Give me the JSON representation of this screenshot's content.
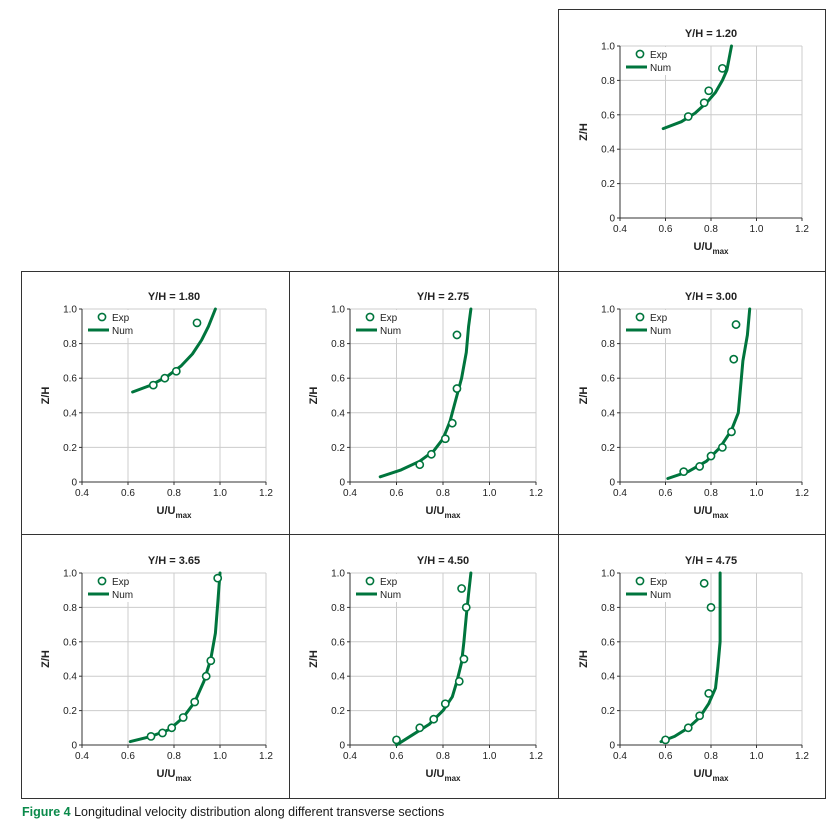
{
  "caption": {
    "label": "Figure 4",
    "text": "Longitudinal velocity distribution along different transverse sections"
  },
  "colors": {
    "series": "#00753d",
    "frame": "#333333",
    "grid": "#cccccc",
    "text": "#222222"
  },
  "chart_data": [
    {
      "type": "scatter",
      "title": "Y/H = 1.20",
      "xlabel": "U/U",
      "xlabel_sub": "max",
      "ylabel": "Z/H",
      "xlim": [
        0.4,
        1.2
      ],
      "ylim": [
        0,
        1.0
      ],
      "xticks": [
        0.4,
        0.6,
        0.8,
        1.0,
        1.2
      ],
      "xtick_labels": [
        "0.4",
        "0.6",
        "0.8",
        "1.0",
        "1.2"
      ],
      "yticks": [
        0,
        0.2,
        0.4,
        0.6,
        0.8,
        1.0
      ],
      "ytick_labels": [
        "0",
        "0.2",
        "0.4",
        "0.6",
        "0.8",
        "1.0"
      ],
      "grid": true,
      "legend": "top-left",
      "series": [
        {
          "name": "Exp",
          "kind": "markers",
          "x": [
            0.7,
            0.77,
            0.79,
            0.85
          ],
          "y": [
            0.59,
            0.67,
            0.74,
            0.87
          ]
        },
        {
          "name": "Num",
          "kind": "line",
          "x": [
            0.59,
            0.67,
            0.73,
            0.78,
            0.82,
            0.85,
            0.87,
            0.88,
            0.89
          ],
          "y": [
            0.52,
            0.56,
            0.61,
            0.67,
            0.73,
            0.8,
            0.86,
            0.93,
            1.0
          ]
        }
      ]
    },
    {
      "type": "scatter",
      "title": "Y/H = 1.80",
      "xlabel": "U/U",
      "xlabel_sub": "max",
      "ylabel": "Z/H",
      "xlim": [
        0.4,
        1.2
      ],
      "ylim": [
        0,
        1.0
      ],
      "xticks": [
        0.4,
        0.6,
        0.8,
        1.0,
        1.2
      ],
      "xtick_labels": [
        "0.4",
        "0.6",
        "0.8",
        "1.0",
        "1.2"
      ],
      "yticks": [
        0,
        0.2,
        0.4,
        0.6,
        0.8,
        1.0
      ],
      "ytick_labels": [
        "0",
        "0.2",
        "0.4",
        "0.6",
        "0.8",
        "1.0"
      ],
      "grid": true,
      "legend": "top-left",
      "series": [
        {
          "name": "Exp",
          "kind": "markers",
          "x": [
            0.71,
            0.76,
            0.81,
            0.9
          ],
          "y": [
            0.56,
            0.6,
            0.64,
            0.92
          ]
        },
        {
          "name": "Num",
          "kind": "line",
          "x": [
            0.62,
            0.7,
            0.77,
            0.83,
            0.88,
            0.92,
            0.95,
            0.98
          ],
          "y": [
            0.52,
            0.56,
            0.61,
            0.67,
            0.74,
            0.82,
            0.9,
            1.0
          ]
        }
      ]
    },
    {
      "type": "scatter",
      "title": "Y/H = 2.75",
      "xlabel": "U/U",
      "xlabel_sub": "max",
      "ylabel": "Z/H",
      "xlim": [
        0.4,
        1.2
      ],
      "ylim": [
        0,
        1.0
      ],
      "xticks": [
        0.4,
        0.6,
        0.8,
        1.0,
        1.2
      ],
      "xtick_labels": [
        "0.4",
        "0.6",
        "0.8",
        "1.0",
        "1.2"
      ],
      "yticks": [
        0,
        0.2,
        0.4,
        0.6,
        0.8,
        1.0
      ],
      "ytick_labels": [
        "0",
        "0.2",
        "0.4",
        "0.6",
        "0.8",
        "1.0"
      ],
      "grid": true,
      "legend": "top-left",
      "series": [
        {
          "name": "Exp",
          "kind": "markers",
          "x": [
            0.7,
            0.75,
            0.81,
            0.84,
            0.86,
            0.86
          ],
          "y": [
            0.1,
            0.16,
            0.25,
            0.34,
            0.54,
            0.85
          ]
        },
        {
          "name": "Num",
          "kind": "line",
          "x": [
            0.53,
            0.62,
            0.7,
            0.76,
            0.8,
            0.83,
            0.85,
            0.88,
            0.9,
            0.91,
            0.92
          ],
          "y": [
            0.03,
            0.07,
            0.12,
            0.18,
            0.25,
            0.35,
            0.45,
            0.6,
            0.75,
            0.9,
            1.0
          ]
        }
      ]
    },
    {
      "type": "scatter",
      "title": "Y/H = 3.00",
      "xlabel": "U/U",
      "xlabel_sub": "max",
      "ylabel": "Z/H",
      "xlim": [
        0.4,
        1.2
      ],
      "ylim": [
        0,
        1.0
      ],
      "xticks": [
        0.4,
        0.6,
        0.8,
        1.0,
        1.2
      ],
      "xtick_labels": [
        "0.4",
        "0.6",
        "0.8",
        "1.0",
        "1.2"
      ],
      "yticks": [
        0,
        0.2,
        0.4,
        0.6,
        0.8,
        1.0
      ],
      "ytick_labels": [
        "0",
        "0.2",
        "0.4",
        "0.6",
        "0.8",
        "1.0"
      ],
      "grid": true,
      "legend": "top-left",
      "series": [
        {
          "name": "Exp",
          "kind": "markers",
          "x": [
            0.68,
            0.75,
            0.8,
            0.85,
            0.89,
            0.9,
            0.91
          ],
          "y": [
            0.06,
            0.09,
            0.15,
            0.2,
            0.29,
            0.71,
            0.91
          ]
        },
        {
          "name": "Num",
          "kind": "line",
          "x": [
            0.61,
            0.7,
            0.78,
            0.84,
            0.89,
            0.92,
            0.93,
            0.94,
            0.96,
            0.97
          ],
          "y": [
            0.02,
            0.06,
            0.12,
            0.2,
            0.3,
            0.4,
            0.55,
            0.7,
            0.85,
            1.0
          ]
        }
      ]
    },
    {
      "type": "scatter",
      "title": "Y/H = 3.65",
      "xlabel": "U/U",
      "xlabel_sub": "max",
      "ylabel": "Z/H",
      "xlim": [
        0.4,
        1.2
      ],
      "ylim": [
        0,
        1.0
      ],
      "xticks": [
        0.4,
        0.6,
        0.8,
        1.0,
        1.2
      ],
      "xtick_labels": [
        "0.4",
        "0.6",
        "0.8",
        "1.0",
        "1.2"
      ],
      "yticks": [
        0,
        0.2,
        0.4,
        0.6,
        0.8,
        1.0
      ],
      "ytick_labels": [
        "0",
        "0.2",
        "0.4",
        "0.6",
        "0.8",
        "1.0"
      ],
      "grid": true,
      "legend": "top-left",
      "series": [
        {
          "name": "Exp",
          "kind": "markers",
          "x": [
            0.7,
            0.75,
            0.79,
            0.84,
            0.89,
            0.94,
            0.96,
            0.99
          ],
          "y": [
            0.05,
            0.07,
            0.1,
            0.16,
            0.25,
            0.4,
            0.49,
            0.97
          ]
        },
        {
          "name": "Num",
          "kind": "line",
          "x": [
            0.61,
            0.7,
            0.78,
            0.84,
            0.89,
            0.93,
            0.96,
            0.98,
            0.99,
            1.0
          ],
          "y": [
            0.02,
            0.05,
            0.09,
            0.16,
            0.25,
            0.37,
            0.5,
            0.65,
            0.82,
            1.0
          ]
        }
      ]
    },
    {
      "type": "scatter",
      "title": "Y/H = 4.50",
      "xlabel": "U/U",
      "xlabel_sub": "max",
      "ylabel": "Z/H",
      "xlim": [
        0.4,
        1.2
      ],
      "ylim": [
        0,
        1.0
      ],
      "xticks": [
        0.4,
        0.6,
        0.8,
        1.0,
        1.2
      ],
      "xtick_labels": [
        "0.4",
        "0.6",
        "0.8",
        "1.0",
        "1.2"
      ],
      "yticks": [
        0,
        0.2,
        0.4,
        0.6,
        0.8,
        1.0
      ],
      "ytick_labels": [
        "0",
        "0.2",
        "0.4",
        "0.6",
        "0.8",
        "1.0"
      ],
      "grid": true,
      "legend": "top-left",
      "series": [
        {
          "name": "Exp",
          "kind": "markers",
          "x": [
            0.6,
            0.7,
            0.76,
            0.81,
            0.87,
            0.89,
            0.9,
            0.88
          ],
          "y": [
            0.03,
            0.1,
            0.15,
            0.24,
            0.37,
            0.5,
            0.8,
            0.91
          ]
        },
        {
          "name": "Num",
          "kind": "line",
          "x": [
            0.6,
            0.67,
            0.74,
            0.8,
            0.84,
            0.86,
            0.88,
            0.89,
            0.9,
            0.91,
            0.92
          ],
          "y": [
            0.0,
            0.06,
            0.12,
            0.2,
            0.28,
            0.37,
            0.48,
            0.6,
            0.75,
            0.88,
            1.0
          ]
        }
      ]
    },
    {
      "type": "scatter",
      "title": "Y/H = 4.75",
      "xlabel": "U/U",
      "xlabel_sub": "max",
      "ylabel": "Z/H",
      "xlim": [
        0.4,
        1.2
      ],
      "ylim": [
        0,
        1.0
      ],
      "xticks": [
        0.4,
        0.6,
        0.8,
        1.0,
        1.2
      ],
      "xtick_labels": [
        "0.4",
        "0.6",
        "0.8",
        "1.0",
        "1.2"
      ],
      "yticks": [
        0,
        0.2,
        0.4,
        0.6,
        0.8,
        1.0
      ],
      "ytick_labels": [
        "0",
        "0.2",
        "0.4",
        "0.6",
        "0.8",
        "1.0"
      ],
      "grid": true,
      "legend": "top-left",
      "series": [
        {
          "name": "Exp",
          "kind": "markers",
          "x": [
            0.6,
            0.7,
            0.75,
            0.79,
            0.8,
            0.77
          ],
          "y": [
            0.03,
            0.1,
            0.17,
            0.3,
            0.8,
            0.94
          ]
        },
        {
          "name": "Num",
          "kind": "line",
          "x": [
            0.58,
            0.64,
            0.7,
            0.75,
            0.79,
            0.82,
            0.83,
            0.84,
            0.84,
            0.84,
            0.84
          ],
          "y": [
            0.02,
            0.05,
            0.1,
            0.16,
            0.24,
            0.33,
            0.45,
            0.6,
            0.75,
            0.9,
            1.0
          ]
        }
      ]
    }
  ]
}
